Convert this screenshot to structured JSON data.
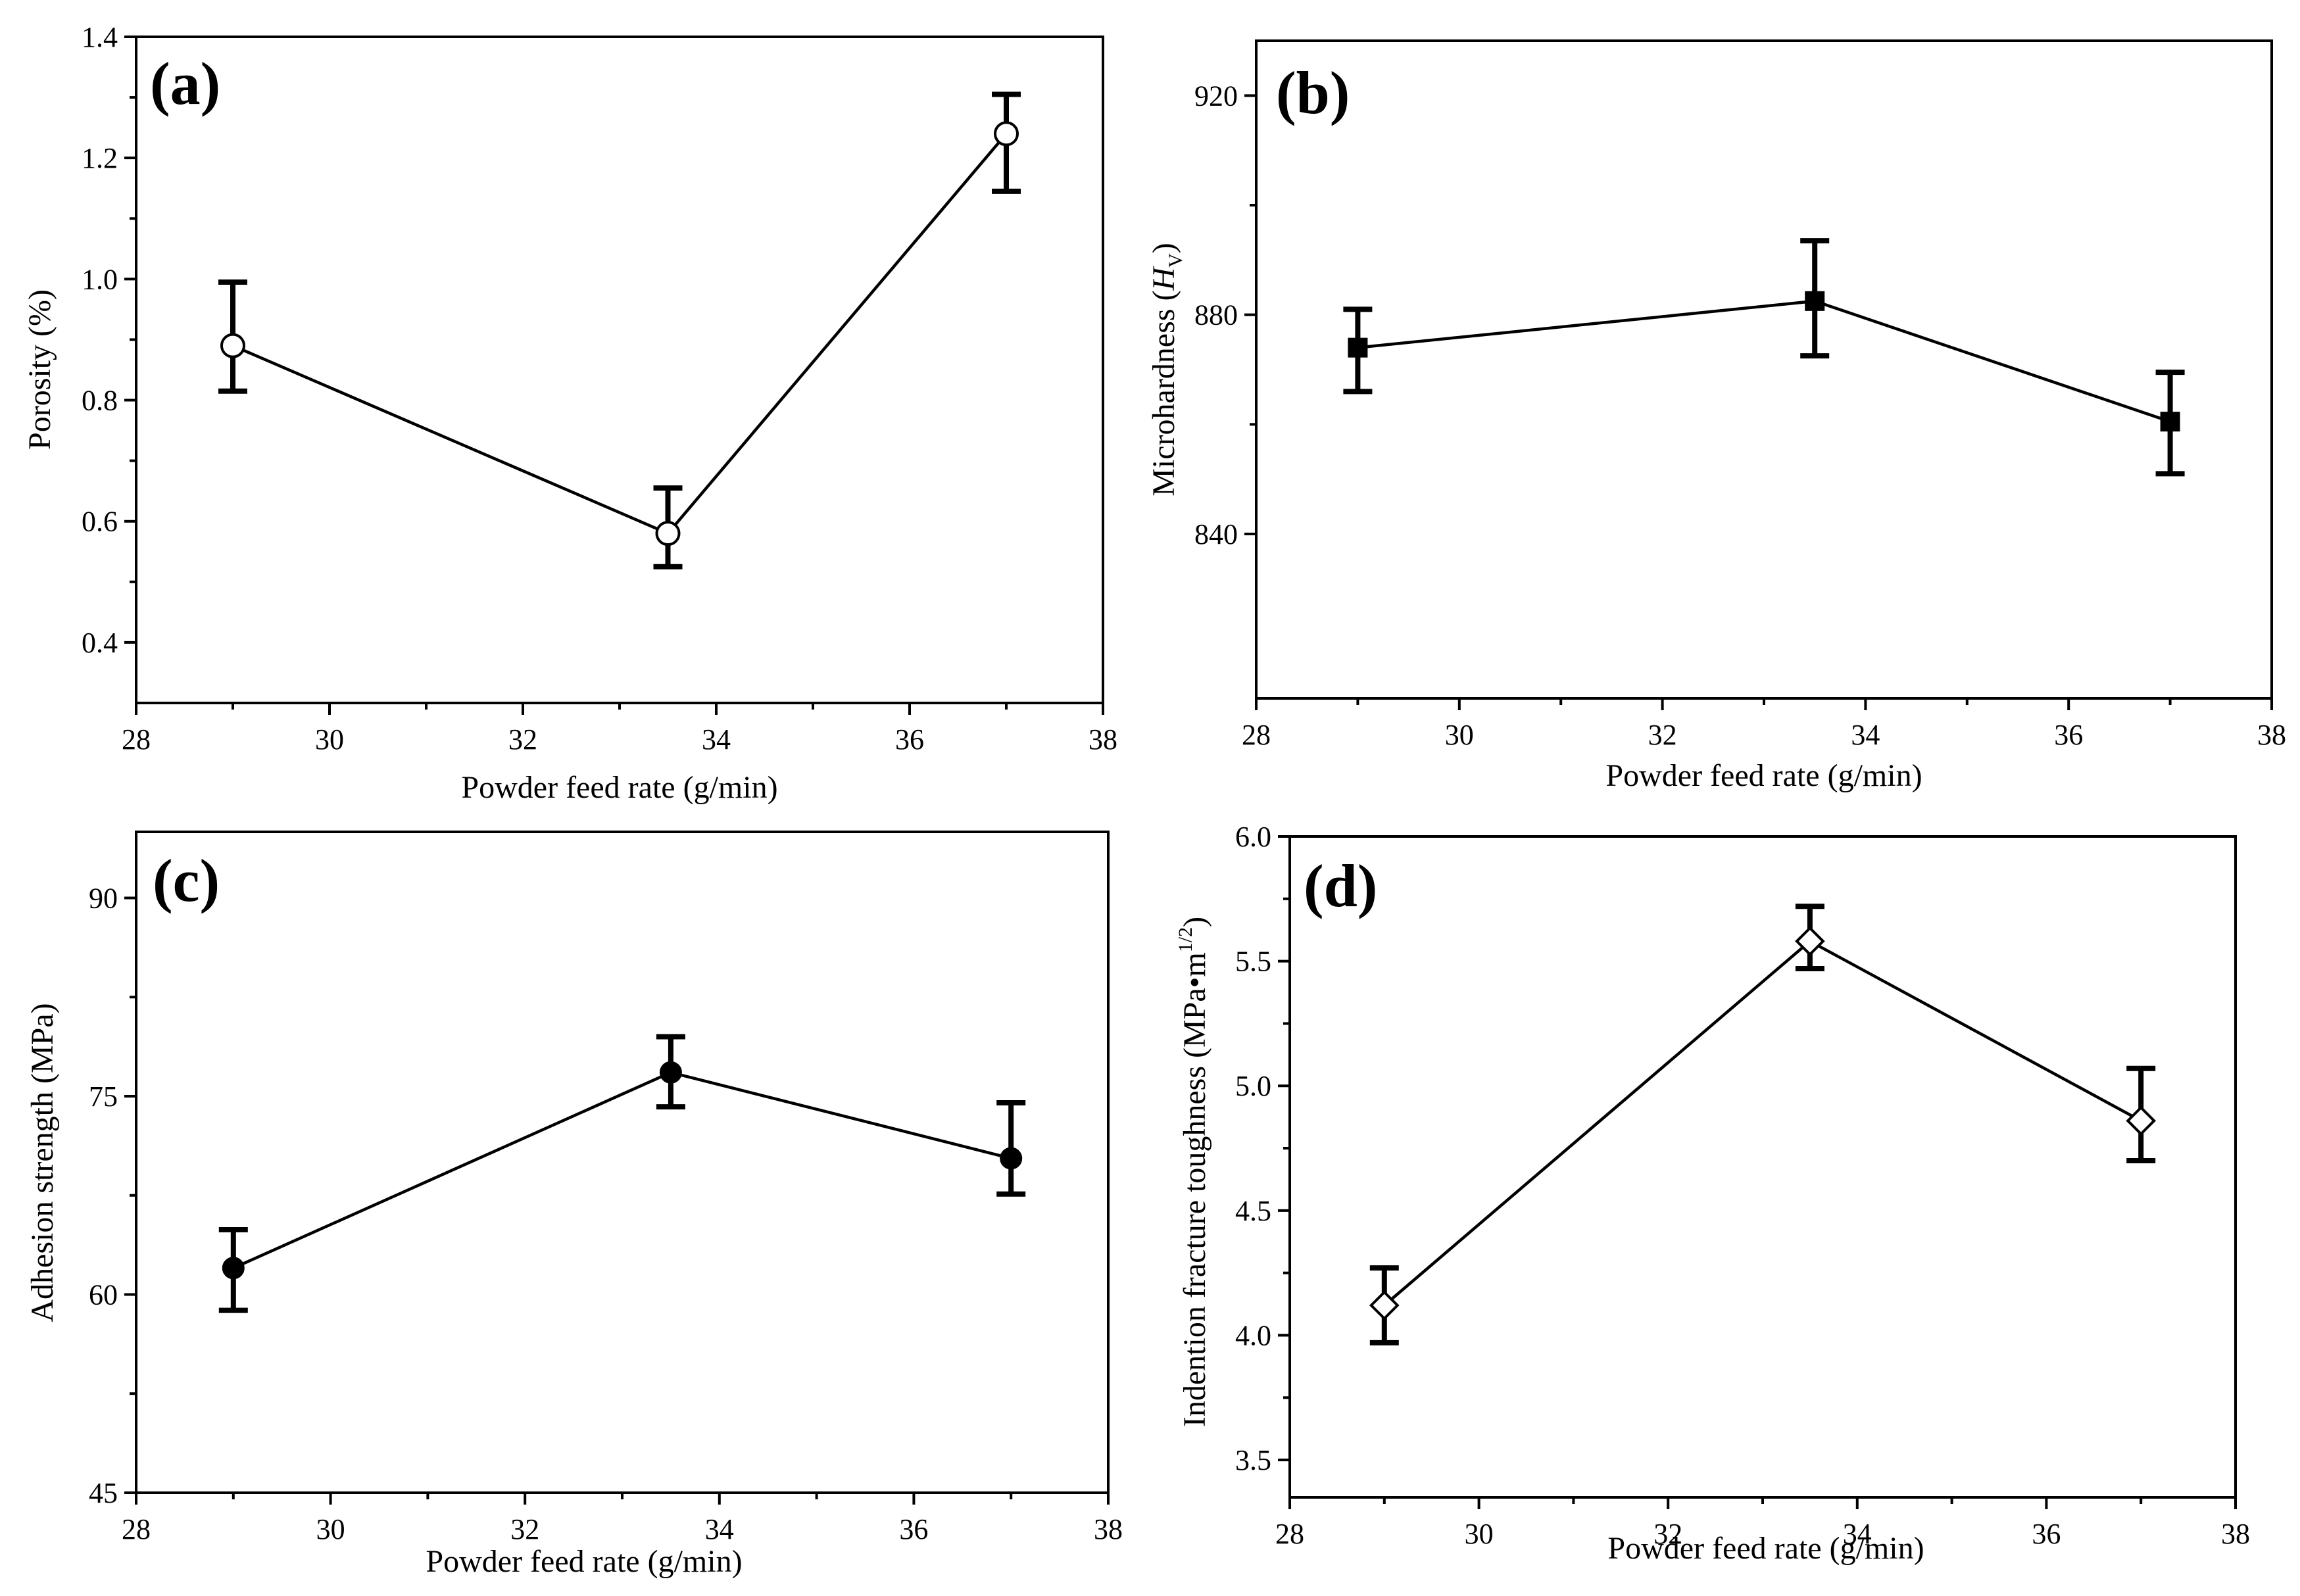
{
  "chart_data": [
    {
      "type": "line",
      "panel_label": "(a)",
      "xlabel": "Powder feed rate (g/min)",
      "ylabel_parts": [
        {
          "text": "Porosity (%)",
          "style": "normal"
        }
      ],
      "xlim": [
        28,
        38
      ],
      "ylim": [
        0.3,
        1.4
      ],
      "xticks": [
        28,
        30,
        32,
        34,
        36,
        38
      ],
      "xtick_labels": [
        "28",
        "30",
        "32",
        "34",
        "36",
        "38"
      ],
      "yticks": [
        0.4,
        0.6,
        0.8,
        1.0,
        1.2,
        1.4
      ],
      "ytick_labels": [
        "0.4",
        "0.6",
        "0.8",
        "1.0",
        "1.2",
        "1.4"
      ],
      "marker": "open-circle",
      "series": [
        {
          "name": "Porosity",
          "x": [
            29,
            33.5,
            37
          ],
          "y": [
            0.89,
            0.58,
            1.24
          ],
          "err_low": [
            0.815,
            0.525,
            1.145
          ],
          "err_high": [
            0.995,
            0.655,
            1.305
          ]
        }
      ]
    },
    {
      "type": "line",
      "panel_label": "(b)",
      "xlabel": "Powder feed rate (g/min)",
      "ylabel_parts": [
        {
          "text": "Microhardness (",
          "style": "normal"
        },
        {
          "text": "H",
          "style": "italic"
        },
        {
          "text": "V",
          "style": "sub"
        },
        {
          "text": ")",
          "style": "normal"
        }
      ],
      "xlim": [
        28,
        38
      ],
      "ylim": [
        810,
        930
      ],
      "xticks": [
        28,
        30,
        32,
        34,
        36,
        38
      ],
      "xtick_labels": [
        "28",
        "30",
        "32",
        "34",
        "36",
        "38"
      ],
      "yticks": [
        840,
        880,
        920
      ],
      "ytick_labels": [
        "840",
        "880",
        "920"
      ],
      "marker": "filled-square",
      "series": [
        {
          "name": "Microhardness",
          "x": [
            29,
            33.5,
            37
          ],
          "y": [
            874,
            882.5,
            860.5
          ],
          "err_low": [
            866,
            872.5,
            851
          ],
          "err_high": [
            881,
            893.5,
            869.5
          ]
        }
      ]
    },
    {
      "type": "line",
      "panel_label": "(c)",
      "xlabel": "Powder feed rate (g/min)",
      "ylabel_parts": [
        {
          "text": "Adhesion strength (MPa)",
          "style": "normal"
        }
      ],
      "xlim": [
        28,
        38
      ],
      "ylim": [
        45,
        95
      ],
      "xticks": [
        28,
        30,
        32,
        34,
        36,
        38
      ],
      "xtick_labels": [
        "28",
        "30",
        "32",
        "34",
        "36",
        "38"
      ],
      "yticks": [
        45,
        60,
        75,
        90
      ],
      "ytick_labels": [
        "45",
        "60",
        "75",
        "90"
      ],
      "marker": "filled-circle",
      "series": [
        {
          "name": "Adhesion strength",
          "x": [
            29,
            33.5,
            37
          ],
          "y": [
            62,
            76.8,
            70.3
          ],
          "err_low": [
            58.8,
            74.2,
            67.6
          ],
          "err_high": [
            64.9,
            79.5,
            74.5
          ]
        }
      ]
    },
    {
      "type": "line",
      "panel_label": "(d)",
      "xlabel": "Powder feed rate (g/min)",
      "ylabel_parts": [
        {
          "text": "Indention fracture toughness (MPa•m",
          "style": "normal"
        },
        {
          "text": "1/2",
          "style": "sup"
        },
        {
          "text": ")",
          "style": "normal"
        }
      ],
      "xlim": [
        28,
        38
      ],
      "ylim": [
        3.35,
        6.0
      ],
      "xticks": [
        28,
        30,
        32,
        34,
        36,
        38
      ],
      "xtick_labels": [
        "28",
        "30",
        "32",
        "34",
        "36",
        "38"
      ],
      "yticks": [
        3.5,
        4.0,
        4.5,
        5.0,
        5.5,
        6.0
      ],
      "ytick_labels": [
        "3.5",
        "4.0",
        "4.5",
        "5.0",
        "5.5",
        "6.0"
      ],
      "marker": "open-diamond",
      "series": [
        {
          "name": "Indention fracture toughness",
          "x": [
            29,
            33.5,
            37
          ],
          "y": [
            4.12,
            5.58,
            4.86
          ],
          "err_low": [
            3.97,
            5.47,
            4.7
          ],
          "err_high": [
            4.27,
            5.72,
            5.07
          ]
        }
      ]
    }
  ]
}
